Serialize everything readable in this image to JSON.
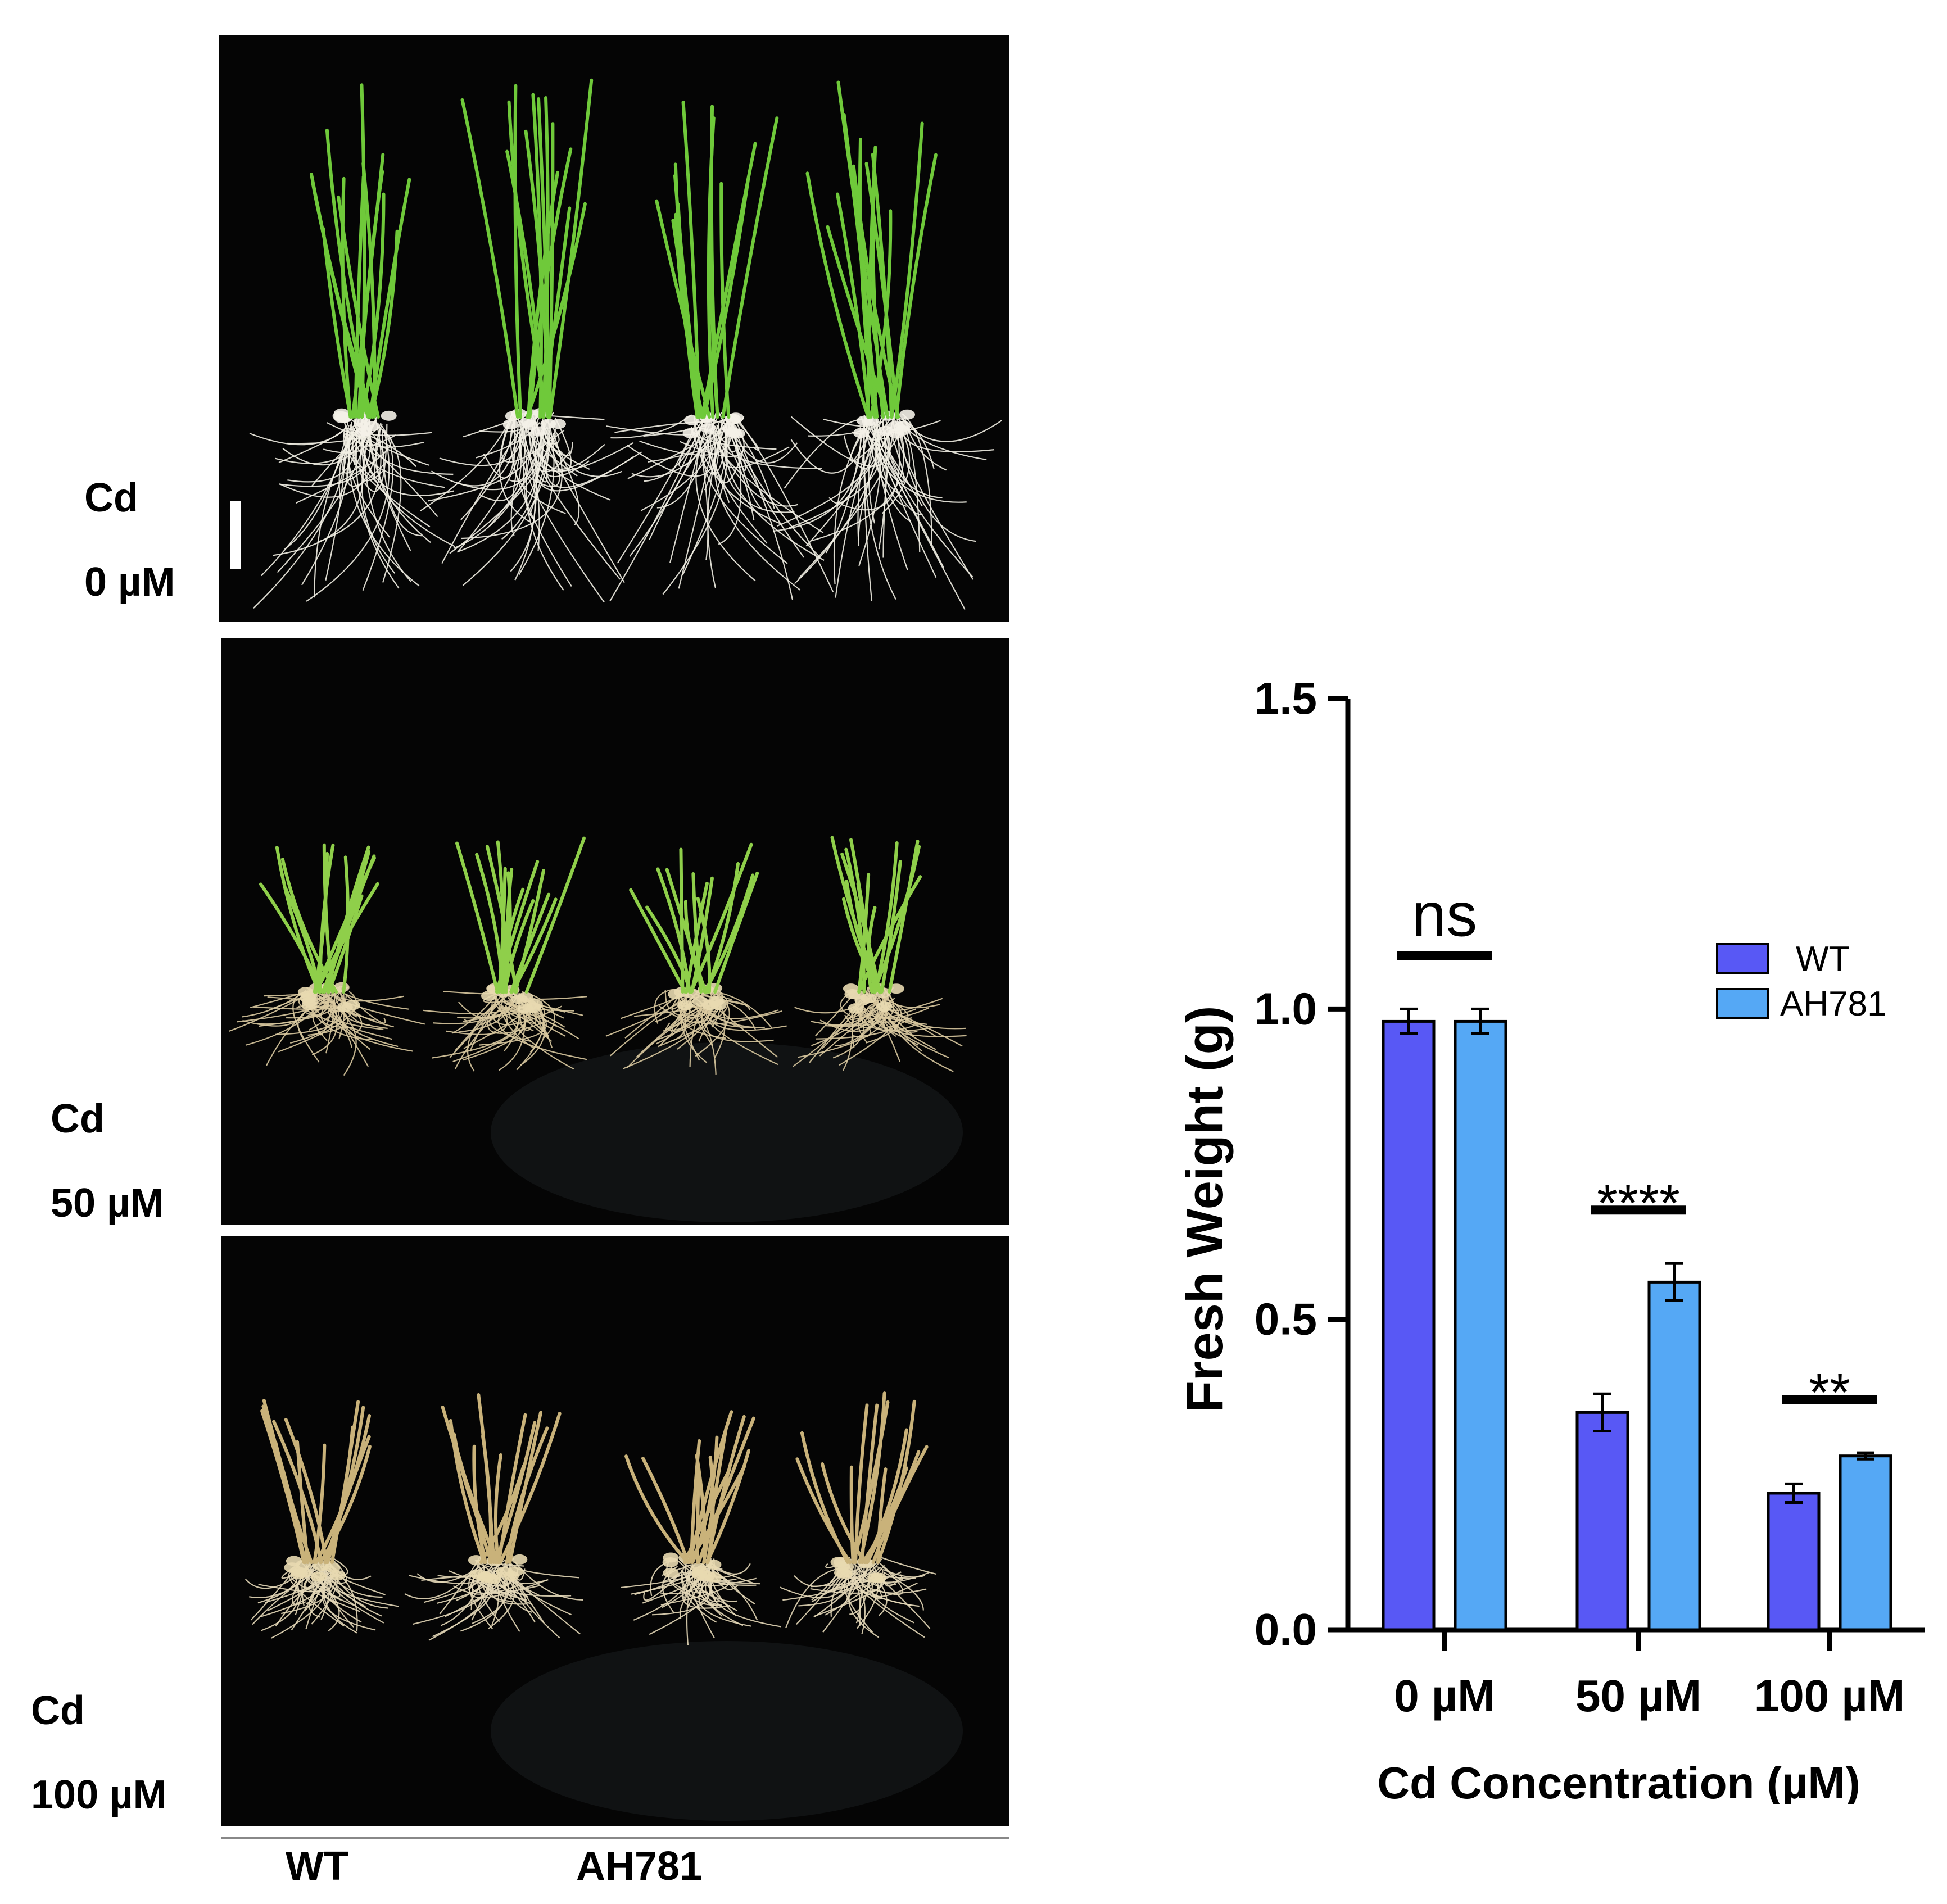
{
  "photo_panels": [
    {
      "id": "cd-0",
      "row_label_line1": "Cd",
      "row_label_line2": "0 µM",
      "condition": "healthy"
    },
    {
      "id": "cd-50",
      "row_label_line1": "Cd",
      "row_label_line2": "50 µM",
      "condition": "stressed"
    },
    {
      "id": "cd-100",
      "row_label_line1": "Cd",
      "row_label_line2": "100 µM",
      "condition": "severe"
    }
  ],
  "column_labels": {
    "wt": "WT",
    "mutant": "AH781"
  },
  "colors": {
    "wt_bar": "#5858f5",
    "ah781_bar": "#55a8f5",
    "leaf_green": "#6fc93a",
    "root_white": "#f2efe4",
    "root_tan": "#d9c9a0"
  },
  "chart_data": {
    "type": "bar",
    "ylabel": "Fresh Weight (g)",
    "xlabel": "Cd Concentration (µM)",
    "categories": [
      "0 µM",
      "50 µM",
      "100 µM"
    ],
    "ylim": [
      0,
      1.5
    ],
    "yticks": [
      "0.0",
      "0.5",
      "1.0",
      "1.5"
    ],
    "ytick_values": [
      0,
      0.5,
      1.0,
      1.5
    ],
    "series": [
      {
        "name": "WT",
        "values": [
          0.98,
          0.35,
          0.22
        ],
        "errors": [
          0.02,
          0.03,
          0.015
        ]
      },
      {
        "name": "AH781",
        "values": [
          0.98,
          0.56,
          0.28
        ],
        "errors": [
          0.02,
          0.03,
          0.005
        ]
      }
    ],
    "significance": [
      "ns",
      "****",
      "**"
    ],
    "legend": [
      "WT",
      "AH781"
    ]
  }
}
